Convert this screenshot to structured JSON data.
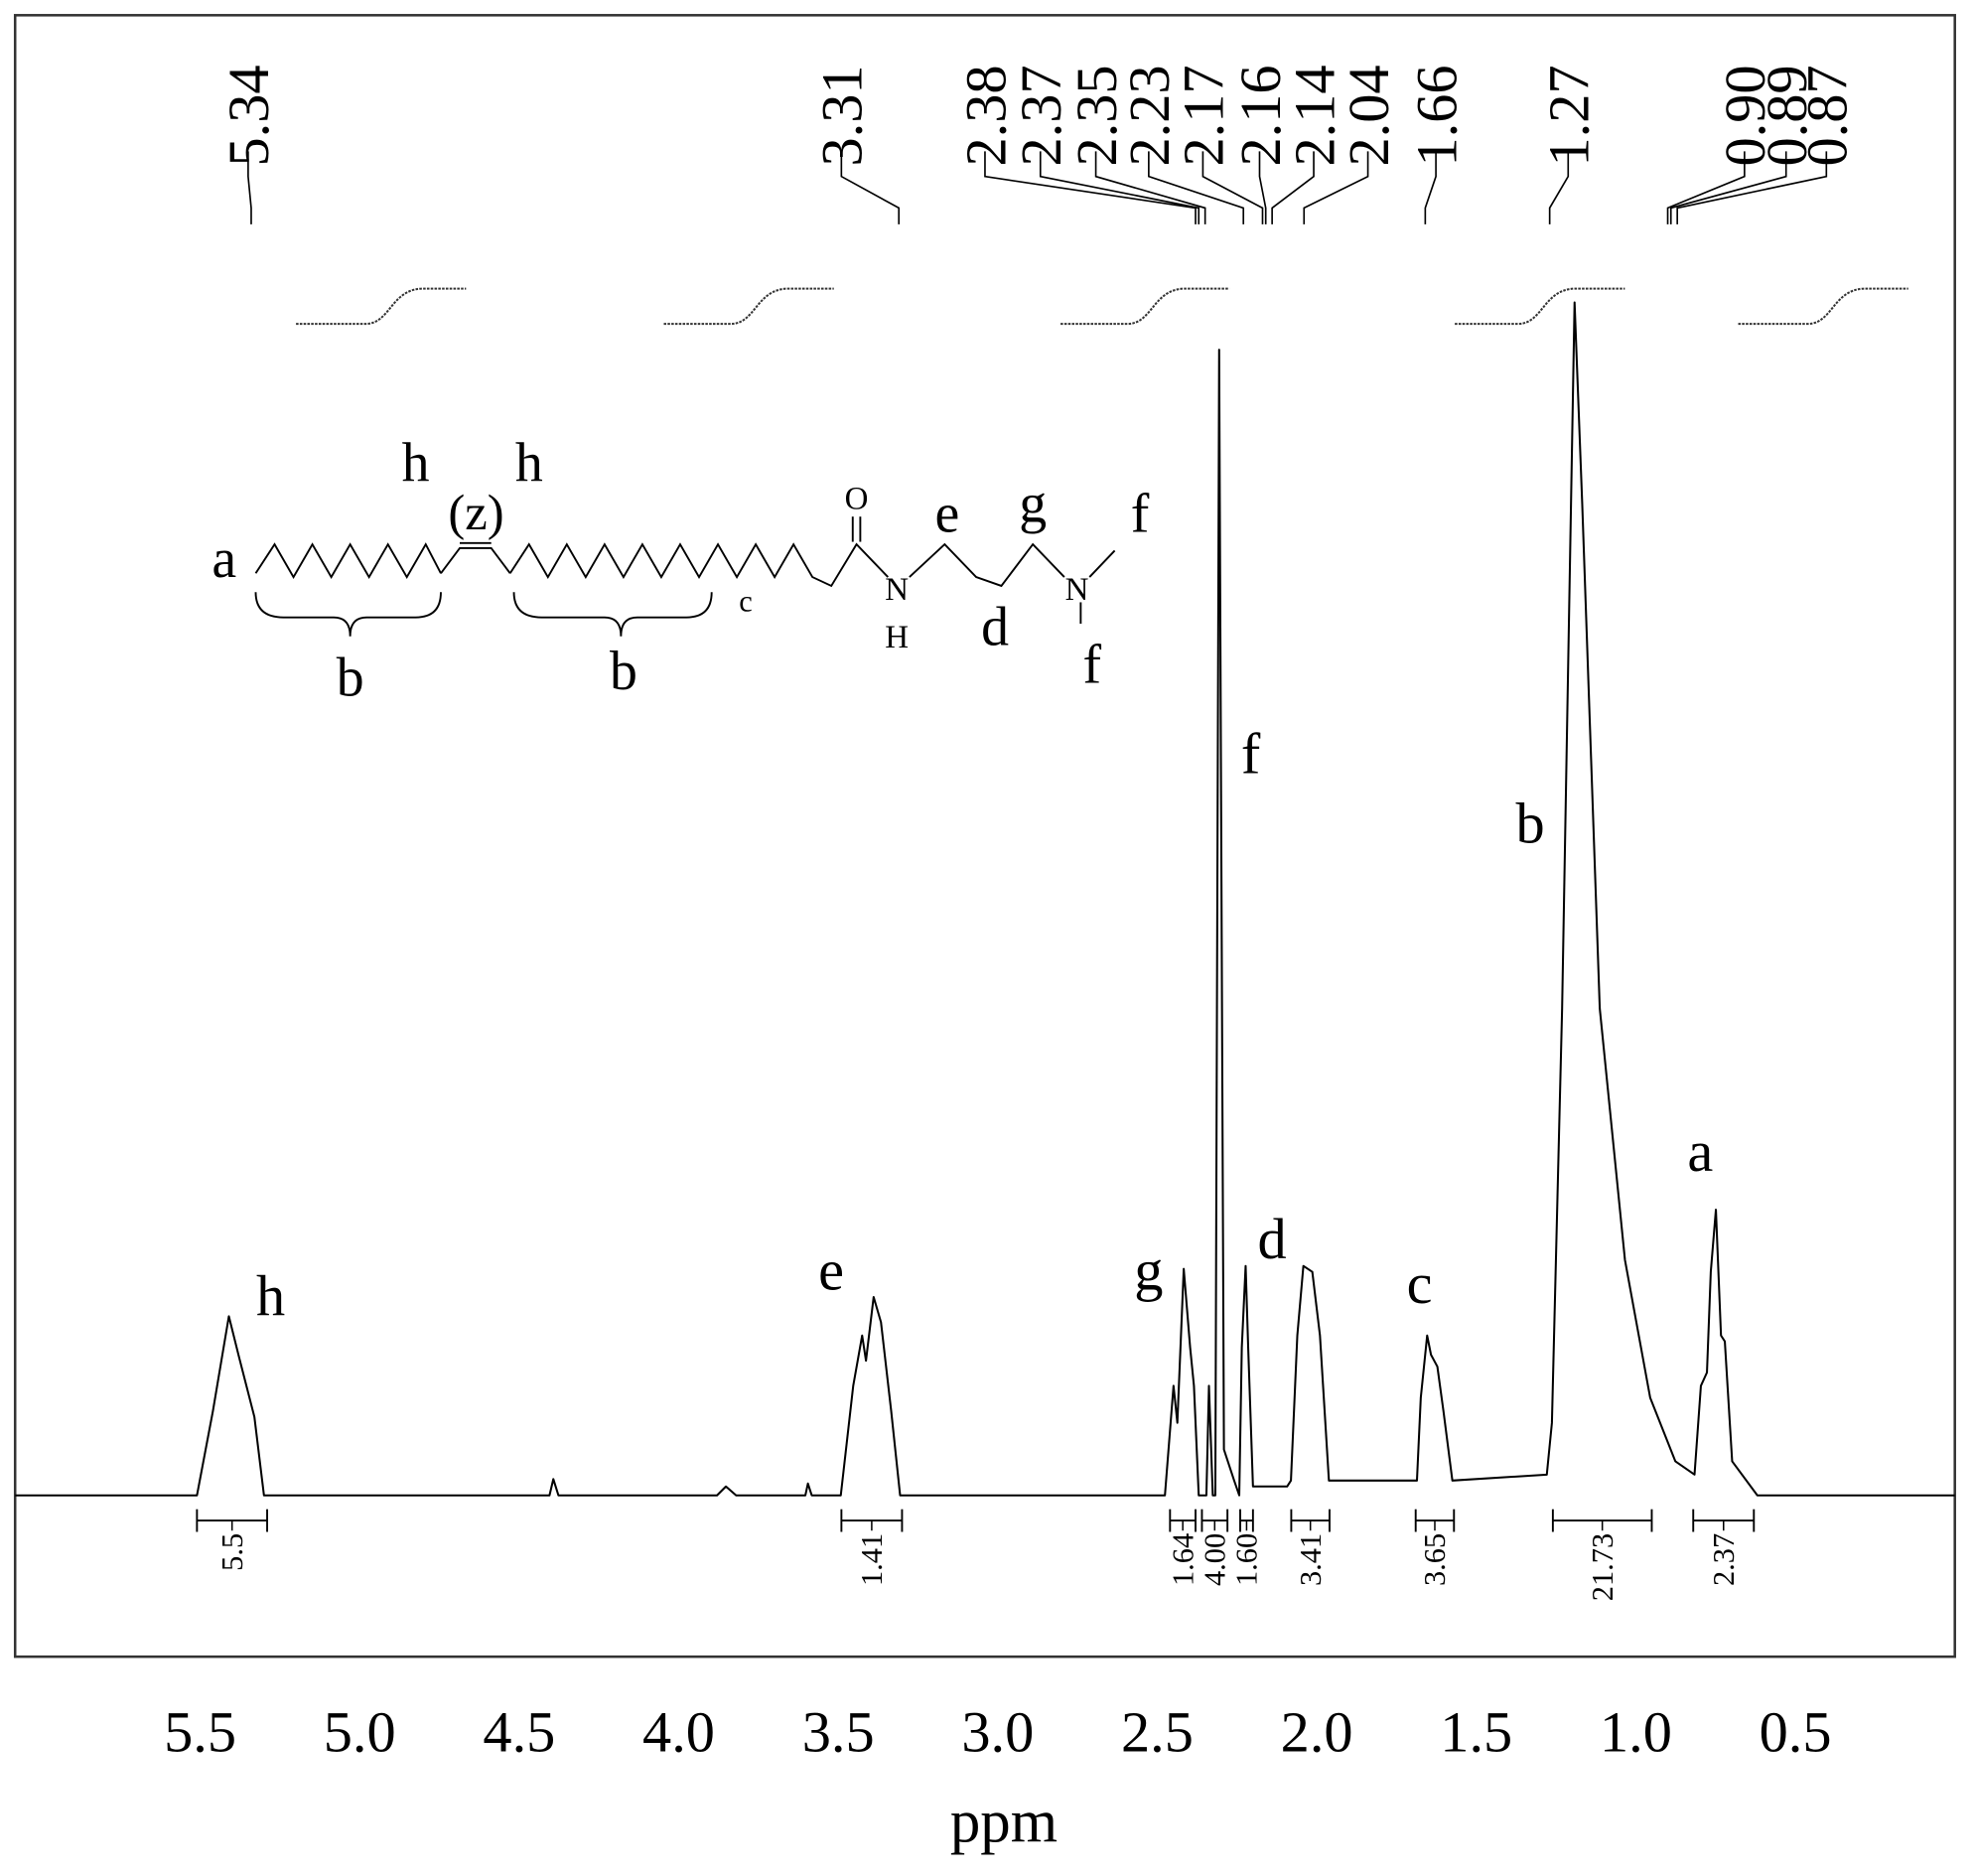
{
  "chart_data": {
    "type": "line",
    "x_label": "ppm",
    "xlim": [
      6.08,
      0
    ],
    "ylim": [
      -10.9,
      100
    ],
    "xticks": [
      5.5,
      {
        "value": 5,
        "label": "5.0"
      },
      4.5,
      {
        "value": 4,
        "label": "4.0"
      },
      3.5,
      {
        "value": 3,
        "label": "3.0"
      },
      2.5,
      {
        "value": 2,
        "label": "2.0"
      },
      1.5,
      {
        "value": 1,
        "label": "1.0"
      },
      0.5
    ],
    "series": [
      {
        "color": "#000000",
        "x": [
          6.08,
          5.51,
          5.46,
          5.41,
          5.38,
          5.33,
          5.3,
          4.405,
          4.393,
          4.377,
          3.88,
          3.852,
          3.82,
          3.603,
          3.595,
          3.583,
          3.492,
          3.453,
          3.425,
          3.413,
          3.389,
          3.366,
          3.334,
          3.306,
          2.476,
          2.449,
          2.437,
          2.417,
          2.397,
          2.385,
          2.37,
          2.346,
          2.338,
          2.326,
          2.318,
          2.306,
          2.291,
          2.259,
          2.243,
          2.235,
          2.223,
          2.215,
          2.2,
          2.093,
          2.081,
          2.061,
          2.042,
          2.014,
          1.99,
          1.962,
          1.686,
          1.674,
          1.654,
          1.642,
          1.622,
          1.603,
          1.575,
          1.279,
          1.263,
          1.231,
          1.192,
          1.168,
          1.113,
          1.034,
          0.955,
          0.876,
          0.816,
          0.796,
          0.777,
          0.765,
          0.749,
          0.733,
          0.721,
          0.698,
          0.619,
          0
        ],
        "values": [
          0,
          0,
          5.7,
          12.1,
          9.5,
          5.3,
          0,
          0,
          1.1,
          0,
          0,
          0.6,
          0,
          0,
          0.8,
          0,
          0,
          7.4,
          10.8,
          9.1,
          13.4,
          11.7,
          5.7,
          0,
          0,
          7.4,
          4.9,
          15.3,
          10,
          7.4,
          0,
          0,
          7.4,
          0,
          0,
          77.4,
          3.1,
          1,
          0,
          10,
          15.5,
          10,
          0.6,
          0.6,
          1,
          10.8,
          15.5,
          15.1,
          10.8,
          1,
          1,
          6.6,
          10.8,
          9.5,
          8.7,
          5.7,
          1,
          1.4,
          4.9,
          32.9,
          80.6,
          67,
          32.9,
          15.9,
          6.6,
          2.3,
          1.4,
          7.4,
          8.3,
          15.1,
          19.3,
          10.8,
          10.4,
          2.3,
          0,
          0
        ]
      }
    ],
    "peak_labels": [
      5.34,
      3.31,
      2.38,
      2.37,
      2.35,
      2.23,
      2.17,
      2.16,
      2.14,
      2.04,
      1.66,
      1.27,
      {
        "value": 0.9,
        "label": "0.90"
      },
      0.89,
      0.87
    ],
    "integrals": [
      {
        "value": 5.5,
        "range": [
          5.51,
          5.29
        ]
      },
      {
        "value": 1.41,
        "range": [
          3.49,
          3.3
        ]
      },
      {
        "value": 1.64,
        "range": [
          2.46,
          2.38
        ]
      },
      {
        "value": 4,
        "label": "4.00",
        "range": [
          2.36,
          2.28
        ]
      },
      {
        "value": 1.6,
        "label": "1.60",
        "range": [
          2.24,
          2.2
        ]
      },
      {
        "value": 3.41,
        "range": [
          2.08,
          1.96
        ]
      },
      {
        "value": 3.65,
        "range": [
          1.69,
          1.57
        ]
      },
      {
        "value": 21.73,
        "range": [
          1.26,
          0.95
        ]
      },
      {
        "value": 2.37,
        "range": [
          0.82,
          0.63
        ]
      }
    ],
    "annotations": [
      {
        "text": "h",
        "x": 5.279,
        "y": 13.4
      },
      {
        "text": "e",
        "x": 3.522,
        "y": 15.1
      },
      {
        "text": "g",
        "x": 2.527,
        "y": 15.1
      },
      {
        "text": "f",
        "x": 2.207,
        "y": 50
      },
      {
        "text": "d",
        "x": 2.14,
        "y": 17.2
      },
      {
        "text": "c",
        "x": 1.678,
        "y": 14.2
      },
      {
        "text": "b",
        "x": 1.331,
        "y": 45.3
      },
      {
        "text": "a",
        "x": 0.798,
        "y": 23.1
      }
    ],
    "structure_labels": [
      "a",
      "b",
      "b",
      "c",
      "h",
      "h",
      "(z)",
      "O",
      "N",
      "H",
      "e",
      "g",
      "d",
      "N",
      "f",
      "f"
    ]
  }
}
